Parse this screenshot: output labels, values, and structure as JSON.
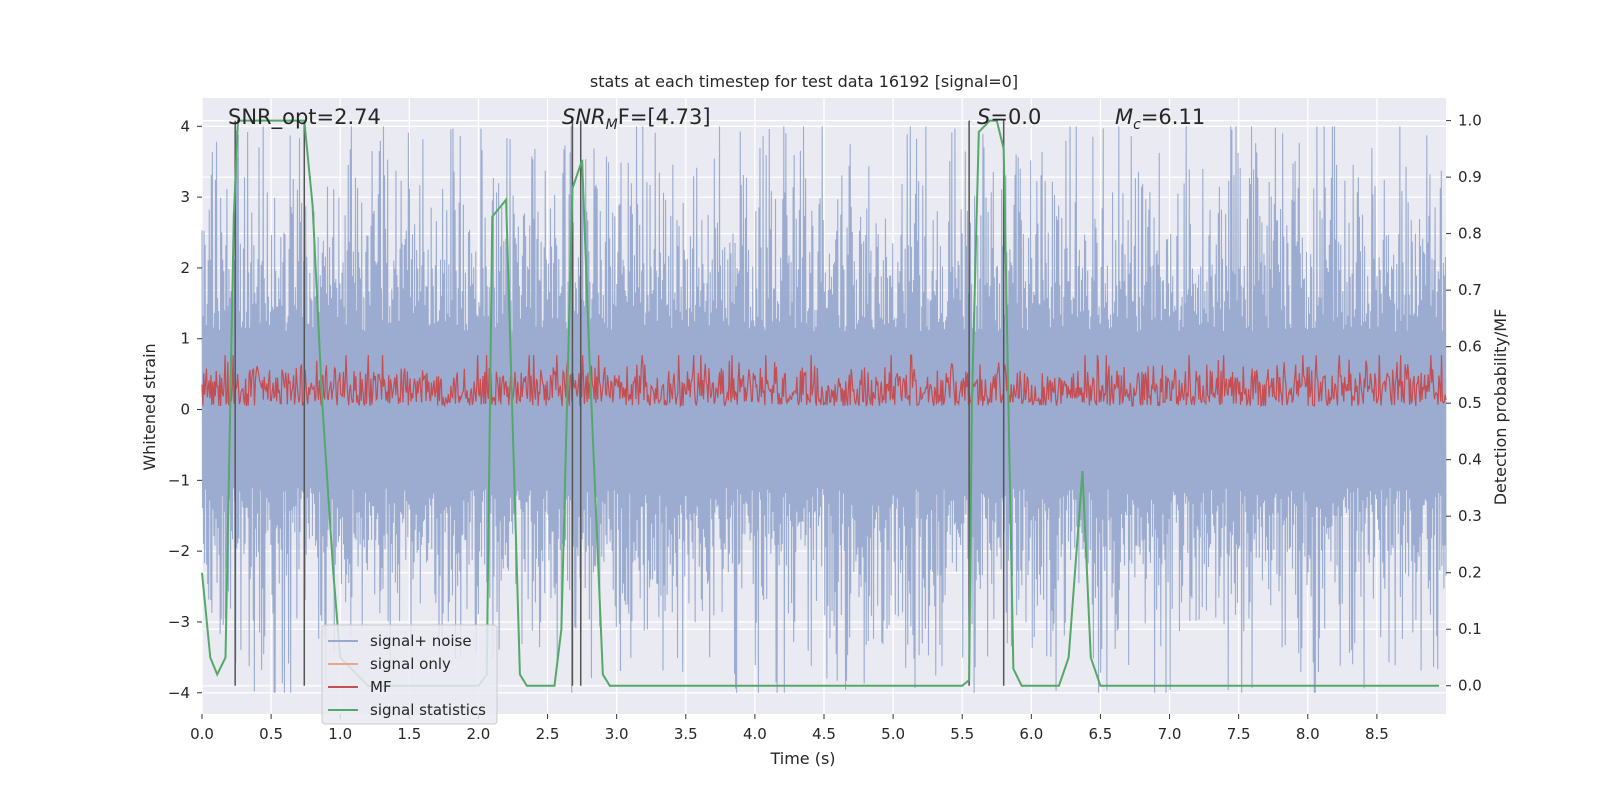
{
  "chart_data": {
    "type": "line",
    "title": "stats at each timestep for test data 16192 [signal=0]",
    "xlabel": "Time (s)",
    "ylabel": "Whitened strain",
    "ylabel_right": "Detection probability/MF",
    "xlim": [
      0,
      9.0
    ],
    "ylim": [
      -4.3,
      4.4
    ],
    "ylim_right": [
      -0.05,
      1.04
    ],
    "x_ticks": [
      "0.0",
      "0.5",
      "1.0",
      "1.5",
      "2.0",
      "2.5",
      "3.0",
      "3.5",
      "4.0",
      "4.5",
      "5.0",
      "5.5",
      "6.0",
      "6.5",
      "7.0",
      "7.5",
      "8.0",
      "8.5"
    ],
    "y_ticks": [
      "4",
      "3",
      "2",
      "1",
      "0",
      "−1",
      "−2",
      "−3",
      "−4"
    ],
    "y_ticks_right": [
      "1.0",
      "0.9",
      "0.8",
      "0.7",
      "0.6",
      "0.5",
      "0.4",
      "0.3",
      "0.2",
      "0.1",
      "0.0"
    ],
    "grid": true,
    "legend_placement": "lower-left",
    "background_color": "#eaeaf2",
    "grid_color": "#ffffff",
    "annotations": {
      "snr_opt": "SNR_opt=2.74",
      "snr_mf_main": "SNR",
      "snr_mf_sub": "M",
      "snr_mf_rest": "F=[4.73]",
      "s_main": "S",
      "s_rest": "=0.0",
      "mc_main": "M",
      "mc_sub": "c",
      "mc_rest": "=6.11"
    },
    "series": [
      {
        "name": "signal+ noise",
        "color": "#97a9cd",
        "axis": "left",
        "style": "dense-noise",
        "amplitude_typical": 2.0,
        "amplitude_peak": 4.0
      },
      {
        "name": "signal only",
        "color": "#e8a78a",
        "axis": "left",
        "values": []
      },
      {
        "name": "MF",
        "color": "#c44e52",
        "axis": "right",
        "style": "dense-noise",
        "baseline": 0.5,
        "range": [
          0.495,
          0.58
        ]
      },
      {
        "name": "signal statistics",
        "color": "#55a868",
        "axis": "right",
        "x": [
          0.0,
          0.06,
          0.11,
          0.17,
          0.23,
          0.26,
          0.3,
          0.35,
          0.5,
          0.6,
          0.74,
          0.8,
          0.87,
          0.95,
          1.0,
          1.2,
          1.4,
          1.6,
          1.8,
          2.0,
          2.06,
          2.1,
          2.2,
          2.3,
          2.35,
          2.45,
          2.55,
          2.6,
          2.68,
          2.75,
          2.8,
          2.9,
          2.95,
          3.1,
          3.5,
          4.0,
          4.5,
          5.0,
          5.5,
          5.55,
          5.57,
          5.62,
          5.7,
          5.75,
          5.8,
          5.87,
          5.93,
          6.0,
          6.2,
          6.27,
          6.37,
          6.43,
          6.5,
          6.6,
          7.0,
          7.5,
          8.0,
          8.5,
          8.95
        ],
        "values": [
          0.2,
          0.05,
          0.02,
          0.05,
          0.83,
          1.0,
          1.0,
          1.0,
          1.0,
          1.0,
          1.0,
          0.85,
          0.5,
          0.2,
          0.05,
          0.0,
          0.0,
          0.0,
          0.0,
          0.0,
          0.02,
          0.83,
          0.86,
          0.02,
          0.0,
          0.0,
          0.0,
          0.1,
          0.88,
          0.93,
          0.6,
          0.02,
          0.0,
          0.0,
          0.0,
          0.0,
          0.0,
          0.0,
          0.0,
          0.01,
          0.5,
          0.98,
          1.0,
          1.0,
          0.95,
          0.03,
          0.0,
          0.0,
          0.0,
          0.05,
          0.38,
          0.05,
          0.0,
          0.0,
          0.0,
          0.0,
          0.0,
          0.0,
          0.0
        ]
      }
    ],
    "vertical_markers": {
      "color": "#555555",
      "x": [
        0.24,
        0.74,
        2.68,
        2.74,
        5.55,
        5.8
      ]
    }
  }
}
